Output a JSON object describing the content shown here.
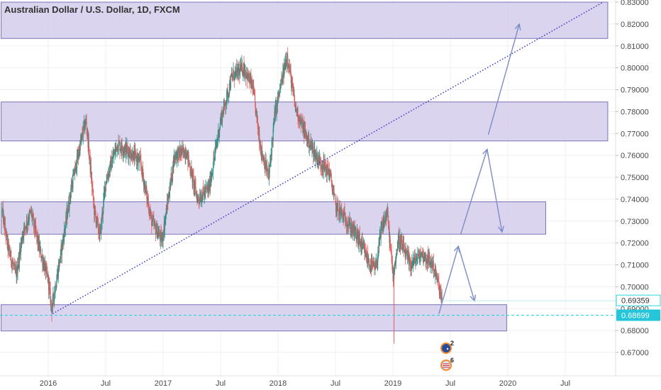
{
  "chart_title": "Australian Dollar / U.S. Dollar, 1D, FXCM",
  "colors": {
    "zone_fill": "#d4ccec",
    "zone_stroke": "#7b74b8",
    "trendline": "#3a3ac8",
    "arrow": "#7c8cc8",
    "candle_up": "#2f8f85",
    "candle_down": "#e0605f",
    "cyan_line": "#27d7e0",
    "last_price_bg": "#26c6da",
    "grid": "#f0f0f3"
  },
  "chart_data": {
    "type": "candlestick",
    "title": "Australian Dollar / U.S. Dollar, 1D, FXCM",
    "ylim": [
      0.66,
      0.83
    ],
    "y_ticks": [
      "0.83000",
      "0.82000",
      "0.81000",
      "0.80000",
      "0.79000",
      "0.78000",
      "0.77000",
      "0.76000",
      "0.75000",
      "0.74000",
      "0.73000",
      "0.72000",
      "0.71000",
      "0.70000",
      "0.69000",
      "0.68000",
      "0.67000"
    ],
    "x_ticks": [
      {
        "t": 2016.0,
        "label": "2016"
      },
      {
        "t": 2016.5,
        "label": "Jul"
      },
      {
        "t": 2017.0,
        "label": "2017"
      },
      {
        "t": 2017.5,
        "label": "Jul"
      },
      {
        "t": 2018.0,
        "label": "2018"
      },
      {
        "t": 2018.5,
        "label": "Jul"
      },
      {
        "t": 2019.0,
        "label": "2019"
      },
      {
        "t": 2019.5,
        "label": "Jul"
      },
      {
        "t": 2020.0,
        "label": "2020"
      },
      {
        "t": 2020.5,
        "label": "Jul"
      }
    ],
    "xlim": [
      2015.59,
      2020.94
    ],
    "price_path": [
      [
        2015.6,
        0.734
      ],
      [
        2015.65,
        0.718
      ],
      [
        2015.72,
        0.705
      ],
      [
        2015.78,
        0.725
      ],
      [
        2015.85,
        0.734
      ],
      [
        2015.92,
        0.718
      ],
      [
        2016.0,
        0.703
      ],
      [
        2016.03,
        0.69
      ],
      [
        2016.1,
        0.712
      ],
      [
        2016.2,
        0.745
      ],
      [
        2016.3,
        0.77
      ],
      [
        2016.33,
        0.776
      ],
      [
        2016.4,
        0.735
      ],
      [
        2016.45,
        0.723
      ],
      [
        2016.5,
        0.748
      ],
      [
        2016.6,
        0.765
      ],
      [
        2016.7,
        0.762
      ],
      [
        2016.8,
        0.757
      ],
      [
        2016.9,
        0.73
      ],
      [
        2016.99,
        0.721
      ],
      [
        2017.1,
        0.76
      ],
      [
        2017.2,
        0.762
      ],
      [
        2017.3,
        0.74
      ],
      [
        2017.4,
        0.745
      ],
      [
        2017.5,
        0.776
      ],
      [
        2017.6,
        0.796
      ],
      [
        2017.7,
        0.8
      ],
      [
        2017.78,
        0.791
      ],
      [
        2017.85,
        0.763
      ],
      [
        2017.92,
        0.75
      ],
      [
        2017.97,
        0.778
      ],
      [
        2018.08,
        0.806
      ],
      [
        2018.15,
        0.782
      ],
      [
        2018.25,
        0.768
      ],
      [
        2018.35,
        0.758
      ],
      [
        2018.45,
        0.752
      ],
      [
        2018.5,
        0.737
      ],
      [
        2018.6,
        0.73
      ],
      [
        2018.7,
        0.722
      ],
      [
        2018.8,
        0.71
      ],
      [
        2018.85,
        0.708
      ],
      [
        2018.9,
        0.726
      ],
      [
        2018.95,
        0.734
      ],
      [
        2019.0,
        0.705
      ],
      [
        2019.05,
        0.722
      ],
      [
        2019.15,
        0.71
      ],
      [
        2019.25,
        0.715
      ],
      [
        2019.35,
        0.71
      ],
      [
        2019.4,
        0.7
      ],
      [
        2019.43,
        0.693
      ]
    ],
    "zones": [
      {
        "y1": 0.8134,
        "y2": 0.83,
        "t1": 2015.59,
        "t2": 2020.87
      },
      {
        "y1": 0.7666,
        "y2": 0.7844,
        "t1": 2015.59,
        "t2": 2020.87
      },
      {
        "y1": 0.724,
        "y2": 0.7388,
        "t1": 2015.59,
        "t2": 2020.33
      },
      {
        "y1": 0.6798,
        "y2": 0.6918,
        "t1": 2015.59,
        "t2": 2019.99
      }
    ],
    "trendline": {
      "t1": 2016.04,
      "y1": 0.6877,
      "t2": 2020.83,
      "y2": 0.83,
      "style": "dotted"
    },
    "arrows": [
      {
        "t1": 2019.4,
        "y1": 0.6876,
        "t2": 2019.57,
        "y2": 0.7185
      },
      {
        "t1": 2019.57,
        "y1": 0.7185,
        "t2": 2019.71,
        "y2": 0.6935
      },
      {
        "t1": 2019.59,
        "y1": 0.724,
        "t2": 2019.82,
        "y2": 0.7628
      },
      {
        "t1": 2019.82,
        "y1": 0.7628,
        "t2": 2019.95,
        "y2": 0.725
      },
      {
        "t1": 2019.83,
        "y1": 0.7694,
        "t2": 2020.1,
        "y2": 0.82
      }
    ],
    "horizontal_line": {
      "y": 0.68699,
      "style": "dashed"
    },
    "price_labels": [
      {
        "value": 0.69359,
        "text": "0.69359",
        "style": "outlined"
      },
      {
        "value": 0.68699,
        "text": "0.68699",
        "style": "filled"
      }
    ],
    "event_flags": [
      {
        "t": 2019.42,
        "y_offset": 0,
        "count": "2",
        "country": "australia"
      },
      {
        "t": 2019.42,
        "y_offset": 1,
        "count": "6",
        "country": "united-states"
      }
    ]
  }
}
